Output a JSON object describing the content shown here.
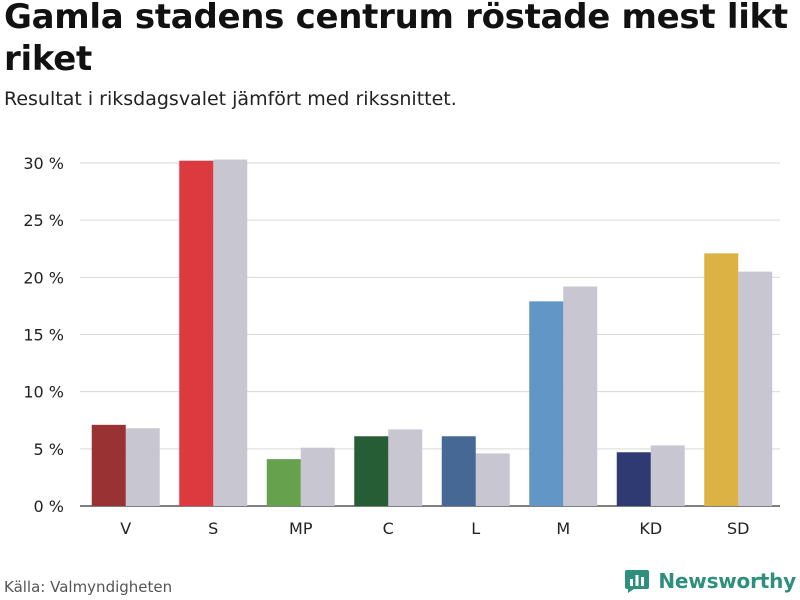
{
  "title": "Gamla stadens centrum röstade mest likt riket",
  "subtitle": "Resultat i riksdagsvalet jämfört med rikssnittet.",
  "source": "Källa: Valmyndigheten",
  "brand": "Newsworthy",
  "chart_data": {
    "type": "bar",
    "categories": [
      "V",
      "S",
      "MP",
      "C",
      "L",
      "M",
      "KD",
      "SD"
    ],
    "series": [
      {
        "values": [
          7.1,
          30.2,
          4.1,
          6.1,
          6.1,
          17.9,
          4.7,
          22.1
        ],
        "colors": [
          "#993333",
          "#dd3a40",
          "#66a14e",
          "#265d35",
          "#456895",
          "#6196c7",
          "#2f3a73",
          "#ddb244"
        ]
      },
      {
        "values": [
          6.8,
          30.3,
          5.1,
          6.7,
          4.6,
          19.2,
          5.3,
          20.5
        ],
        "color": "#c8c7d1"
      }
    ],
    "yticks": [
      0,
      5,
      10,
      15,
      20,
      25,
      30
    ],
    "ytick_labels": [
      "0 %",
      "5 %",
      "10 %",
      "15 %",
      "20 %",
      "25 %",
      "30 %"
    ],
    "ylim": [
      0,
      30
    ],
    "grid": true,
    "legend": false
  }
}
